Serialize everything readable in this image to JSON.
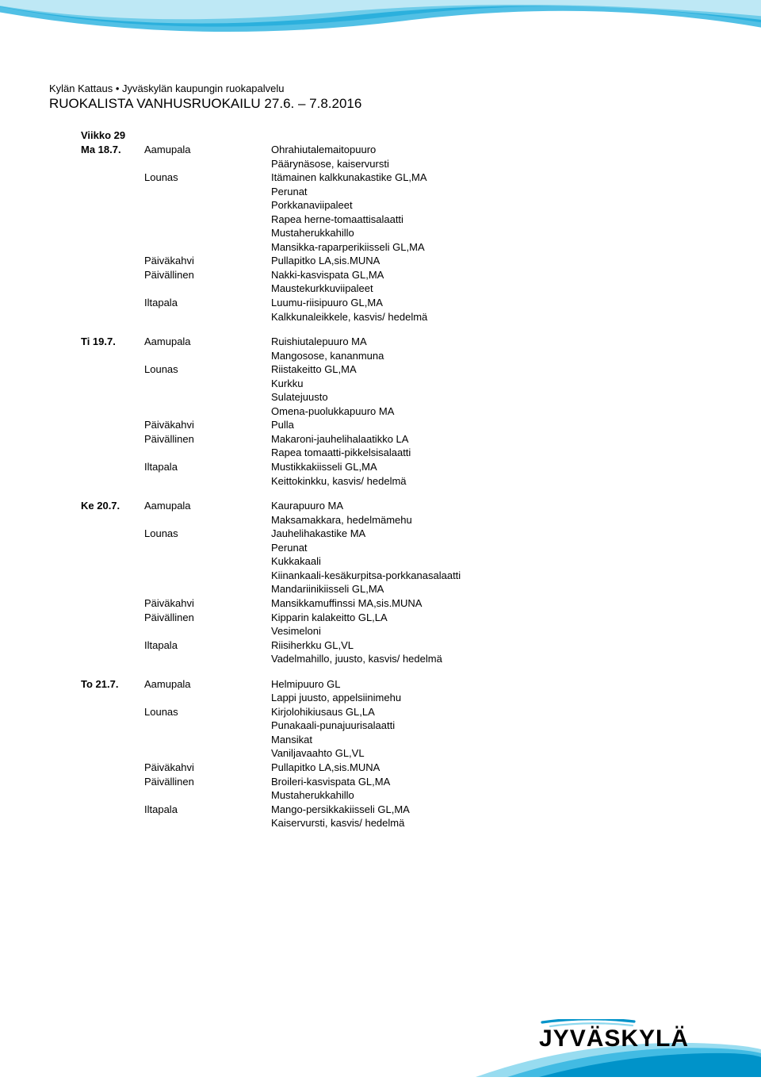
{
  "colors": {
    "band_dark": "#0093c9",
    "band_mid": "#33b5e0",
    "band_light": "#8dd8ee",
    "band_white": "#ffffff",
    "text": "#000000"
  },
  "header": {
    "org_line": "Kylän Kattaus • Jyväskylän kaupungin ruokapalvelu",
    "title": "RUOKALISTA VANHUSRUOKAILU 27.6. – 7.8.2016"
  },
  "week_label": "Viikko 29",
  "days": [
    {
      "day": "Ma 18.7.",
      "rows": [
        {
          "meal": "Aamupala",
          "food": "Ohrahiutalemaitopuuro"
        },
        {
          "meal": "",
          "food": "Päärynäsose, kaiservursti"
        },
        {
          "meal": "Lounas",
          "food": "Itämainen kalkkunakastike GL,MA"
        },
        {
          "meal": "",
          "food": "Perunat"
        },
        {
          "meal": "",
          "food": "Porkkanaviipaleet"
        },
        {
          "meal": "",
          "food": "Rapea herne-tomaattisalaatti"
        },
        {
          "meal": "",
          "food": "Mustaherukkahillo"
        },
        {
          "meal": "",
          "food": "Mansikka-raparperikiisseli GL,MA"
        },
        {
          "meal": "Päiväkahvi",
          "food": "Pullapitko LA,sis.MUNA"
        },
        {
          "meal": "Päivällinen",
          "food": "Nakki-kasvispata GL,MA"
        },
        {
          "meal": "",
          "food": "Maustekurkkuviipaleet"
        },
        {
          "meal": "Iltapala",
          "food": "Luumu-riisipuuro GL,MA"
        },
        {
          "meal": "",
          "food": "Kalkkunaleikkele, kasvis/ hedelmä"
        }
      ]
    },
    {
      "day": "Ti 19.7.",
      "rows": [
        {
          "meal": "Aamupala",
          "food": "Ruishiutalepuuro MA"
        },
        {
          "meal": "",
          "food": "Mangosose, kananmuna"
        },
        {
          "meal": "Lounas",
          "food": "Riistakeitto GL,MA"
        },
        {
          "meal": "",
          "food": "Kurkku"
        },
        {
          "meal": "",
          "food": "Sulatejuusto"
        },
        {
          "meal": "",
          "food": "Omena-puolukkapuuro MA"
        },
        {
          "meal": "Päiväkahvi",
          "food": "Pulla"
        },
        {
          "meal": "Päivällinen",
          "food": "Makaroni-jauhelihalaatikko LA"
        },
        {
          "meal": "",
          "food": "Rapea tomaatti-pikkelsisalaatti"
        },
        {
          "meal": "Iltapala",
          "food": "Mustikkakiisseli GL,MA"
        },
        {
          "meal": "",
          "food": "Keittokinkku, kasvis/ hedelmä"
        }
      ]
    },
    {
      "day": "Ke 20.7.",
      "rows": [
        {
          "meal": "Aamupala",
          "food": "Kaurapuuro MA"
        },
        {
          "meal": "",
          "food": "Maksamakkara, hedelmämehu"
        },
        {
          "meal": "Lounas",
          "food": "Jauhelihakastike MA"
        },
        {
          "meal": "",
          "food": "Perunat"
        },
        {
          "meal": "",
          "food": "Kukkakaali"
        },
        {
          "meal": "",
          "food": "Kiinankaali-kesäkurpitsa-porkkanasalaatti"
        },
        {
          "meal": "",
          "food": "Mandariinikiisseli GL,MA"
        },
        {
          "meal": "Päiväkahvi",
          "food": "Mansikkamuffinssi MA,sis.MUNA"
        },
        {
          "meal": "Päivällinen",
          "food": "Kipparin kalakeitto GL,LA"
        },
        {
          "meal": "",
          "food": "Vesimeloni"
        },
        {
          "meal": "Iltapala",
          "food": "Riisiherkku GL,VL"
        },
        {
          "meal": "",
          "food": "Vadelmahillo, juusto, kasvis/ hedelmä"
        }
      ]
    },
    {
      "day": "To 21.7.",
      "rows": [
        {
          "meal": "Aamupala",
          "food": "Helmipuuro GL"
        },
        {
          "meal": "",
          "food": "Lappi juusto, appelsiinimehu"
        },
        {
          "meal": "Lounas",
          "food": "Kirjolohikiusaus GL,LA"
        },
        {
          "meal": "",
          "food": "Punakaali-punajuurisalaatti"
        },
        {
          "meal": "",
          "food": "Mansikat"
        },
        {
          "meal": "",
          "food": "Vaniljavaahto GL,VL"
        },
        {
          "meal": "Päiväkahvi",
          "food": "Pullapitko LA,sis.MUNA"
        },
        {
          "meal": "Päivällinen",
          "food": "Broileri-kasvispata GL,MA"
        },
        {
          "meal": "",
          "food": "Mustaherukkahillo"
        },
        {
          "meal": "Iltapala",
          "food": "Mango-persikkakiisseli GL,MA"
        },
        {
          "meal": "",
          "food": "Kaiservursti, kasvis/ hedelmä"
        }
      ]
    }
  ],
  "footer_logo_text": "JYVÄSKYLÄ"
}
